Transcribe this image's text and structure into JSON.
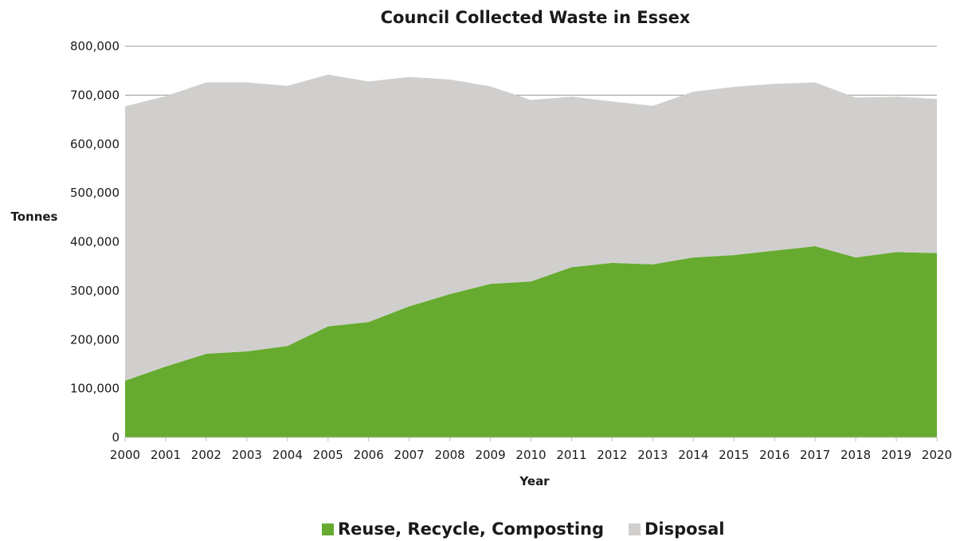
{
  "chart_data": {
    "type": "area",
    "stacked": true,
    "title": "Council Collected Waste in Essex",
    "xlabel": "Year",
    "ylabel": "Tonnes",
    "ylim": [
      0,
      800000
    ],
    "yticks": [
      "0",
      "100,000",
      "200,000",
      "300,000",
      "400,000",
      "500,000",
      "600,000",
      "700,000",
      "800,000"
    ],
    "x": [
      "2000",
      "2001",
      "2002",
      "2003",
      "2004",
      "2005",
      "2006",
      "2007",
      "2008",
      "2009",
      "2010",
      "2011",
      "2012",
      "2013",
      "2014",
      "2015",
      "2016",
      "2017",
      "2018",
      "2019",
      "2020"
    ],
    "series": [
      {
        "name": "Reuse, Recycle, Composting",
        "color": "#66ab2f",
        "values": [
          116000,
          145000,
          171000,
          176000,
          187000,
          227000,
          236000,
          268000,
          293000,
          314000,
          319000,
          348000,
          357000,
          354000,
          368000,
          373000,
          382000,
          391000,
          368000,
          379000,
          377000
        ]
      },
      {
        "name": "Disposal",
        "color": "#d0cfcd",
        "values": [
          561000,
          553000,
          555000,
          550000,
          532000,
          515000,
          492000,
          469000,
          439000,
          404000,
          371000,
          349000,
          330000,
          324000,
          339000,
          344000,
          341000,
          335000,
          327000,
          318000,
          315000
        ]
      }
    ],
    "grid": true,
    "legend_position": "bottom"
  }
}
